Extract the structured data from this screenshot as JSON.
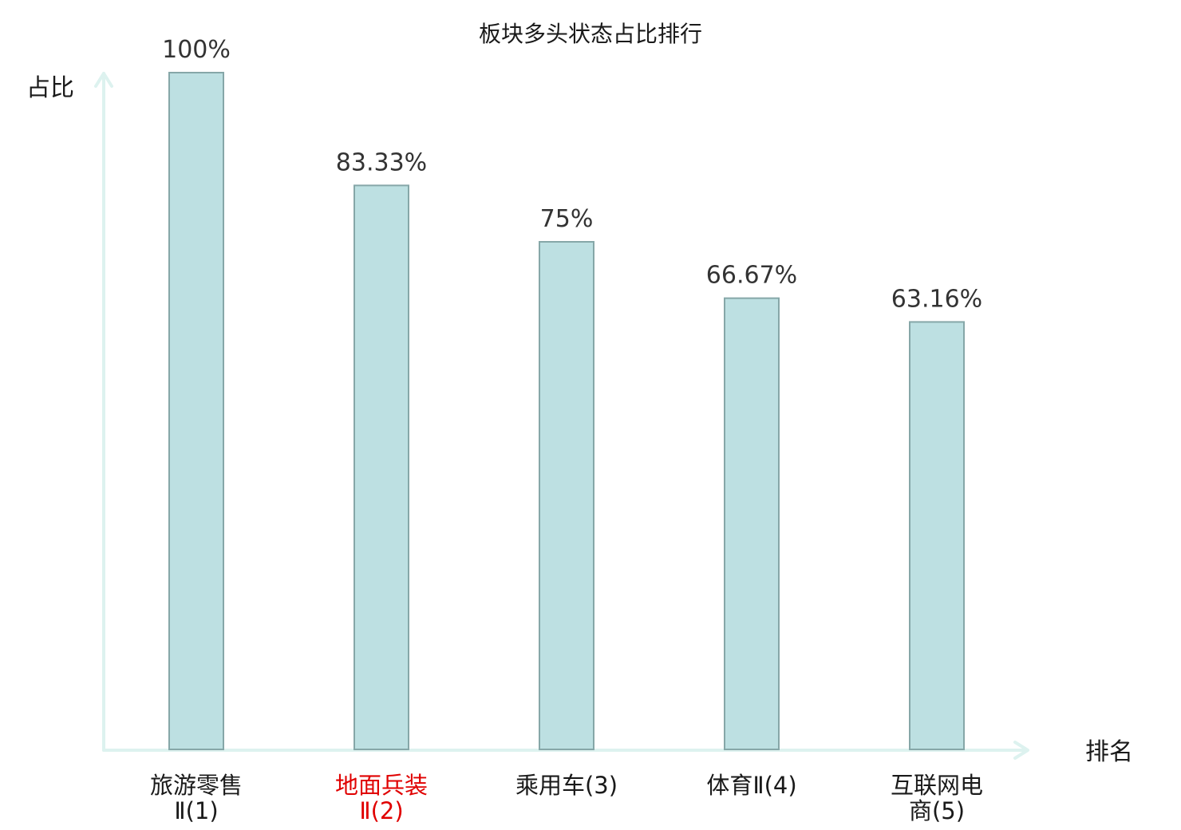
{
  "chart_data": {
    "type": "bar",
    "title": "板块多头状态占比排行",
    "xlabel": "排名",
    "ylabel": "占比",
    "ylim": [
      0,
      100
    ],
    "grid": false,
    "categories": [
      {
        "lines": [
          "旅游零售",
          "Ⅱ(1)"
        ],
        "highlight": false
      },
      {
        "lines": [
          "地面兵装",
          "Ⅱ(2)"
        ],
        "highlight": true
      },
      {
        "lines": [
          "乘用车(3)"
        ],
        "highlight": false
      },
      {
        "lines": [
          "体育Ⅱ(4)"
        ],
        "highlight": false
      },
      {
        "lines": [
          "互联网电",
          "商(5)"
        ],
        "highlight": false
      }
    ],
    "values": [
      100,
      83.33,
      75,
      66.67,
      63.16
    ],
    "value_labels": [
      "100%",
      "83.33%",
      "75%",
      "66.67%",
      "63.16%"
    ]
  },
  "colors": {
    "bar_fill": "#bde0e2",
    "bar_stroke": "#86a7a8",
    "axis": "#ddf2ef",
    "text": "#1a1a1a",
    "value_text": "#333333",
    "highlight": "#e00000"
  }
}
